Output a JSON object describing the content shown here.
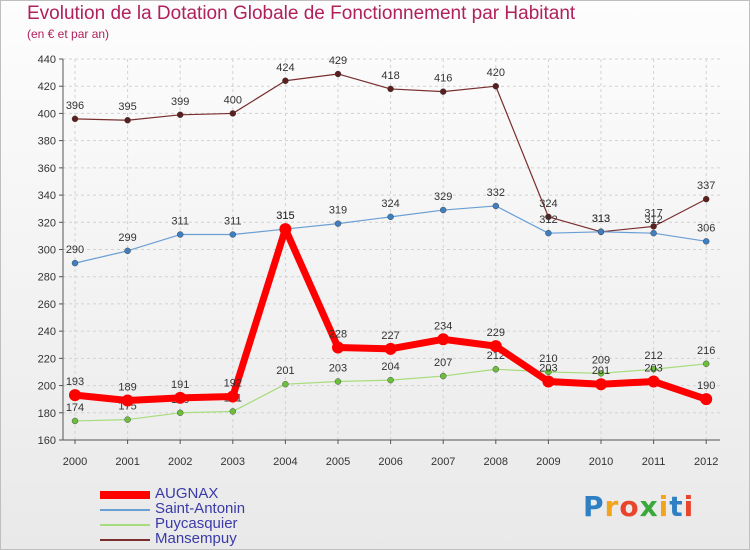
{
  "title": "Evolution de la Dotation Globale de Fonctionnement par Habitant",
  "subtitle": "(en € et par an)",
  "logo": "Proxiti",
  "chart_data": {
    "type": "line",
    "title": "Evolution de la Dotation Globale de Fonctionnement par Habitant",
    "subtitle": "(en € et par an)",
    "xlabel": "",
    "ylabel": "",
    "x": [
      "2000",
      "2001",
      "2002",
      "2003",
      "2004",
      "2005",
      "2006",
      "2007",
      "2008",
      "2009",
      "2010",
      "2011",
      "2012"
    ],
    "ylim": [
      160,
      440
    ],
    "yticks": [
      160,
      180,
      200,
      220,
      240,
      260,
      280,
      300,
      320,
      340,
      360,
      380,
      400,
      420,
      440
    ],
    "grid": true,
    "legend_position": "bottom-left",
    "series": [
      {
        "name": "AUGNAX",
        "color": "#ff0000",
        "values": [
          193,
          189,
          191,
          192,
          315,
          228,
          227,
          234,
          229,
          203,
          201,
          203,
          190
        ]
      },
      {
        "name": "Saint-Antonin",
        "color": "#6a9fd4",
        "values": [
          290,
          299,
          311,
          311,
          315,
          319,
          324,
          329,
          332,
          312,
          313,
          312,
          306
        ]
      },
      {
        "name": "Puycasquier",
        "color": "#a6dc7b",
        "values": [
          174,
          175,
          180,
          181,
          201,
          203,
          204,
          207,
          212,
          210,
          209,
          212,
          216
        ]
      },
      {
        "name": "Mansempuy",
        "color": "#7a2e2e",
        "values": [
          396,
          395,
          399,
          400,
          424,
          429,
          418,
          416,
          420,
          324,
          313,
          317,
          337
        ]
      }
    ]
  }
}
